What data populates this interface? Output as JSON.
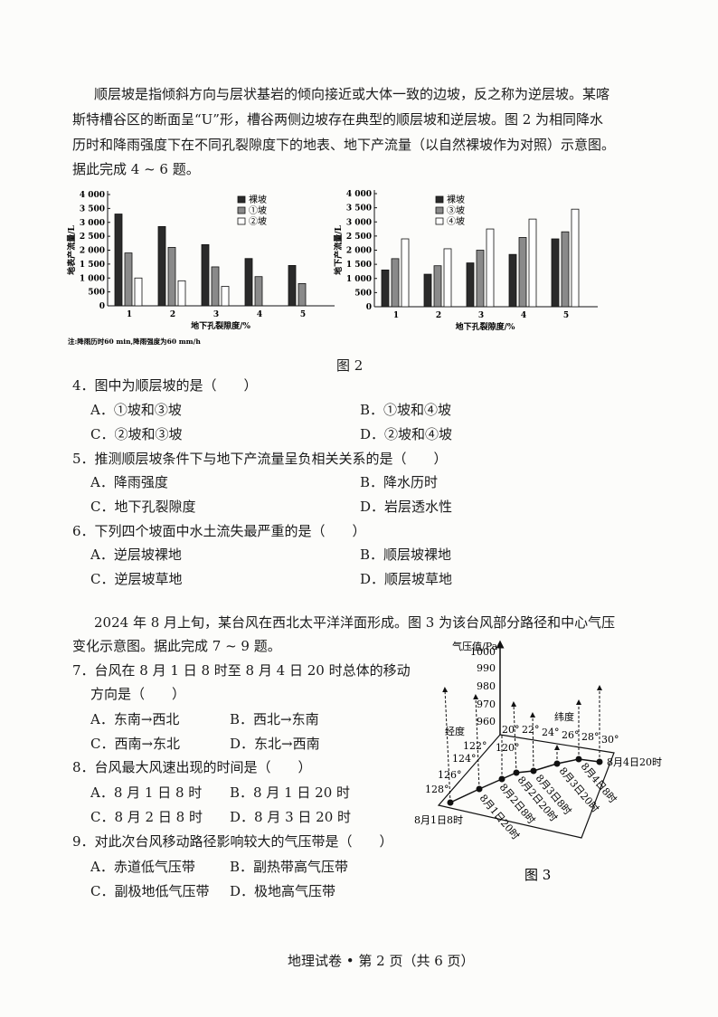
{
  "intro": {
    "lines": [
      "顺层坡是指倾斜方向与层状基岩的倾向接近或大体一致的边坡，反之称为逆层坡。某喀",
      "斯特槽谷区的断面呈“U”形，槽谷两侧边坡存在典型的顺层坡和逆层坡。图 2 为相同降水",
      "历时和降雨强度下在不同孔裂隙度下的地表、地下产流量（以自然裸坡作为对照）示意图。",
      "据此完成 4 ~ 6 题。"
    ]
  },
  "chart_data": [
    {
      "type": "bar",
      "categories": [
        "1",
        "2",
        "3",
        "4",
        "5"
      ],
      "xlabel": "地下孔裂隙度/%",
      "ylabel": "地表产流量/L",
      "ylim": [
        0,
        4000
      ],
      "yticks": [
        "0",
        "500",
        "1 000",
        "1 500",
        "2 000",
        "2 500",
        "3 000",
        "3 500",
        "4 000"
      ],
      "legend": "top-right",
      "note": "注:降雨历时60 min,降雨强度为60 mm/h",
      "series": [
        {
          "name": "裸坡",
          "color": "#2a2a2a",
          "values": [
            3300,
            2850,
            2200,
            1700,
            1450
          ]
        },
        {
          "name": "①坡",
          "color": "#8a8a8a",
          "values": [
            1900,
            2100,
            1400,
            1050,
            800
          ]
        },
        {
          "name": "②坡",
          "color": "#ffffff",
          "values": [
            1000,
            900,
            700,
            null,
            null
          ]
        }
      ]
    },
    {
      "type": "bar",
      "categories": [
        "1",
        "2",
        "3",
        "4",
        "5"
      ],
      "xlabel": "地下孔裂隙度/%",
      "ylabel": "地下产流量/L",
      "ylim": [
        0,
        4000
      ],
      "yticks": [
        "0",
        "500",
        "1 000",
        "1 500",
        "2 000",
        "2 500",
        "3 000",
        "3 500",
        "4 000"
      ],
      "legend": "top-left",
      "series": [
        {
          "name": "裸坡",
          "color": "#2a2a2a",
          "values": [
            1300,
            1150,
            1550,
            1850,
            2400
          ]
        },
        {
          "name": "③坡",
          "color": "#8a8a8a",
          "values": [
            1700,
            1450,
            2000,
            2450,
            2650
          ]
        },
        {
          "name": "④坡",
          "color": "#ffffff",
          "values": [
            2400,
            2050,
            2750,
            3100,
            3450
          ]
        }
      ]
    }
  ],
  "fig2_caption": "图 2",
  "q4": {
    "stem": "4．图中为顺层坡的是（　　）",
    "a": "A．①坡和③坡",
    "b": "B．①坡和④坡",
    "c": "C．②坡和③坡",
    "d": "D．②坡和④坡"
  },
  "q5": {
    "stem": "5．推测顺层坡条件下与地下产流量呈负相关关系的是（　　）",
    "a": "A．降雨强度",
    "b": "B．降水历时",
    "c": "C．地下孔裂隙度",
    "d": "D．岩层透水性"
  },
  "q6": {
    "stem": "6．下列四个坡面中水土流失最严重的是（　　）",
    "a": "A．逆层坡裸地",
    "b": "B．顺层坡裸地",
    "c": "C．逆层坡草地",
    "d": "D．顺层坡草地"
  },
  "intro2": {
    "lines": [
      "2024 年 8 月上旬，某台风在西北太平洋洋面形成。图 3 为该台风部分路径和中心气压",
      "变化示意图。据此完成 7 ~ 9 题。"
    ]
  },
  "q7": {
    "stem1": "7．台风在 8 月 1 日 8 时至 8 月 4 日 20 时总体的移动",
    "stem2": "方向是（　　）",
    "a": "A．东南→西北",
    "b": "B．西北→东南",
    "c": "C．西南→东北",
    "d": "D．东北→西南"
  },
  "q8": {
    "stem": "8．台风最大风速出现的时间是（　　）",
    "a": "A．8 月 1 日 8 时",
    "b": "B．8 月 1 日 20 时",
    "c": "C．8 月 2 日 8 时",
    "d": "D．8 月 3 日 20 时"
  },
  "q9": {
    "stem": "9．对此次台风移动路径影响较大的气压带是（　　）",
    "a": "A．赤道低气压带",
    "b": "B．副热带高气压带",
    "c": "C．副极地低气压带",
    "d": "D．极地高气压带"
  },
  "fig3": {
    "caption": "图 3",
    "pressure_axis": "气压值/Pa",
    "pressure_ticks": [
      "960",
      "970",
      "980",
      "990",
      "1000"
    ],
    "lon_label": "经度",
    "lat_label": "纬度",
    "lon_ticks": [
      "120°",
      "122°",
      "124°",
      "126°",
      "128°"
    ],
    "lat_ticks": [
      "20°",
      "22°",
      "24°",
      "26°",
      "28°",
      "30°"
    ],
    "times": [
      "8月1日8时",
      "8月1日20时",
      "8月2日8时",
      "8月2日20时",
      "8月3日8时",
      "8月3日20时",
      "8月4日8时",
      "8月4日20时"
    ]
  },
  "footer": "地理试卷 • 第 2 页（共 6 页）"
}
